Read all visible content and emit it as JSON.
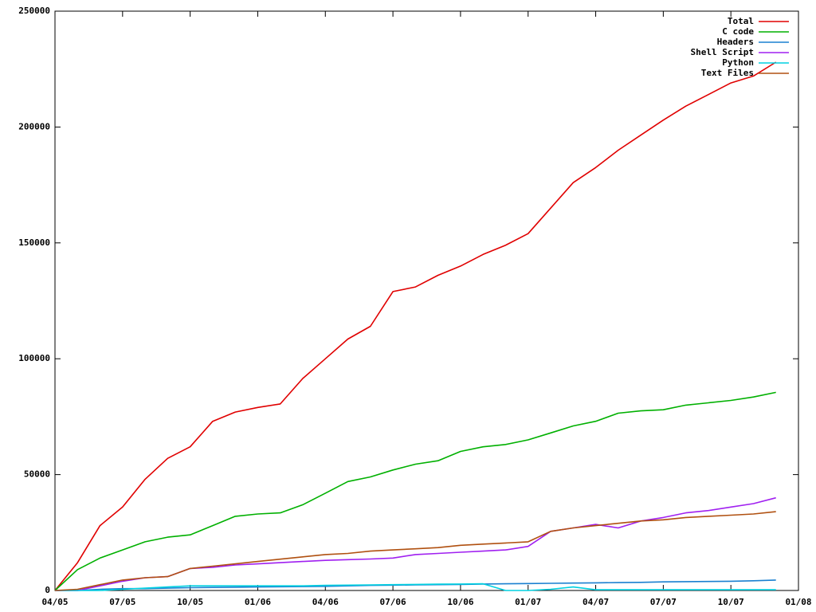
{
  "chart_data": {
    "type": "line",
    "x": [
      "04/05",
      null,
      null,
      "07/05",
      null,
      null,
      "10/05",
      null,
      null,
      "01/06",
      null,
      null,
      "04/06",
      null,
      null,
      "07/06",
      null,
      null,
      "10/06",
      null,
      null,
      "01/07",
      null,
      null,
      "04/07",
      null,
      null,
      "07/07",
      null,
      null,
      "10/07",
      null,
      null,
      "01/08"
    ],
    "ylim": [
      0,
      250000
    ],
    "yticks": [
      0,
      50000,
      100000,
      150000,
      200000,
      250000
    ],
    "grid": false,
    "legend": "top-right",
    "series": [
      {
        "name": "Total",
        "color": "#e00000",
        "values": [
          0,
          12000,
          28000,
          36000,
          48000,
          57000,
          62000,
          73000,
          77000,
          79000,
          80500,
          91500,
          100000,
          108500,
          114000,
          129000,
          131000,
          136000,
          140000,
          145000,
          149000,
          154000,
          165000,
          176000,
          182500,
          190000,
          196500,
          203000,
          209000,
          214000,
          219000,
          222000,
          228000,
          null
        ]
      },
      {
        "name": "C code",
        "color": "#00b000",
        "values": [
          0,
          9000,
          14000,
          17500,
          21000,
          23000,
          24000,
          28000,
          32000,
          33000,
          33500,
          37000,
          42000,
          47000,
          49000,
          52000,
          54500,
          56000,
          60000,
          62000,
          63000,
          65000,
          68000,
          71000,
          73000,
          76500,
          77500,
          78000,
          80000,
          81000,
          82000,
          83500,
          85500,
          null
        ]
      },
      {
        "name": "Headers",
        "color": "#1a80d0",
        "values": [
          0,
          0,
          500,
          800,
          800,
          1000,
          1200,
          1300,
          1400,
          1500,
          1600,
          1700,
          1800,
          2000,
          2200,
          2300,
          2400,
          2500,
          2600,
          2800,
          2900,
          3000,
          3100,
          3200,
          3300,
          3400,
          3500,
          3700,
          3800,
          3900,
          4000,
          4200,
          4500,
          null
        ]
      },
      {
        "name": "Shell Script",
        "color": "#a020f0",
        "values": [
          0,
          0,
          2000,
          4000,
          5500,
          6000,
          9500,
          10000,
          11000,
          11500,
          12000,
          12500,
          13000,
          13300,
          13600,
          14000,
          15500,
          16000,
          16500,
          17000,
          17500,
          19000,
          25500,
          27000,
          28500,
          27000,
          30000,
          31500,
          33500,
          34500,
          36000,
          37500,
          40000,
          null
        ]
      },
      {
        "name": "Python",
        "color": "#00d0e0",
        "values": [
          0,
          0,
          0,
          500,
          1000,
          1500,
          2000,
          2000,
          2000,
          2000,
          2000,
          2000,
          2200,
          2300,
          2400,
          2500,
          2600,
          2700,
          2800,
          2900,
          0,
          0,
          500,
          1500,
          300,
          300,
          300,
          300,
          300,
          300,
          300,
          300,
          300,
          null
        ]
      },
      {
        "name": "Text Files",
        "color": "#b05010",
        "values": [
          0,
          500,
          2500,
          4500,
          5500,
          6000,
          9500,
          10500,
          11500,
          12500,
          13500,
          14500,
          15500,
          16000,
          17000,
          17500,
          18000,
          18500,
          19500,
          20000,
          20500,
          21000,
          25500,
          27000,
          28000,
          29000,
          30000,
          30500,
          31500,
          32000,
          32500,
          33000,
          34000,
          null
        ]
      }
    ]
  }
}
